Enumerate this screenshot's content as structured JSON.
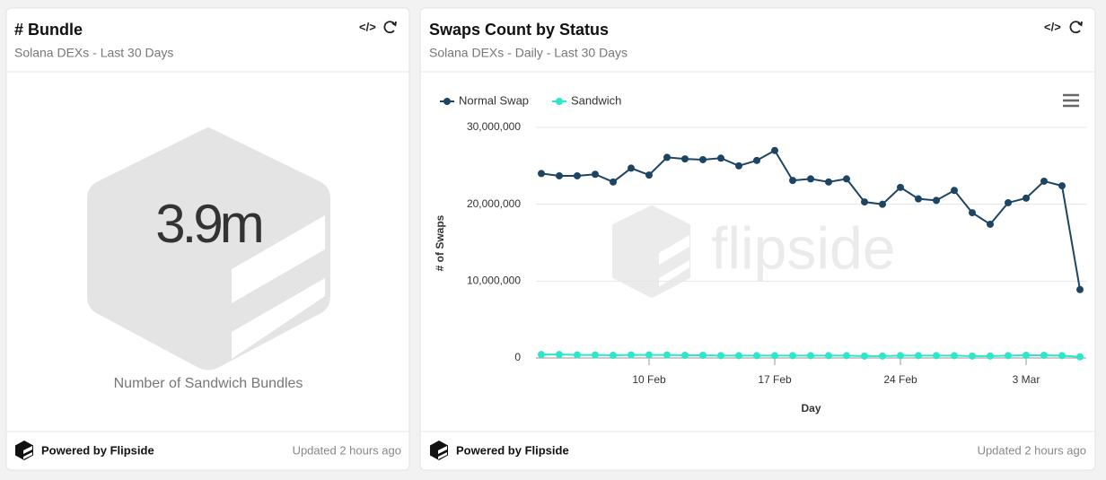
{
  "cards": [
    {
      "title": "# Bundle",
      "subtitle": "Solana DEXs - Last 30 Days",
      "value": "3.9m",
      "label": "Number of Sandwich Bundles",
      "footer": "Powered by Flipside",
      "updated": "Updated 2 hours ago"
    },
    {
      "title": "Swaps Count by Status",
      "subtitle": "Solana DEXs - Daily - Last 30 Days",
      "footer": "Powered by Flipside",
      "updated": "Updated 2 hours ago"
    }
  ],
  "chart_data": {
    "type": "line",
    "xlabel": "Day",
    "ylabel": "# of Swaps",
    "watermark": "flipside",
    "categories": [
      null,
      null,
      null,
      null,
      null,
      null,
      "10 Feb",
      null,
      null,
      null,
      null,
      null,
      null,
      "17 Feb",
      null,
      null,
      null,
      null,
      null,
      null,
      "24 Feb",
      null,
      null,
      null,
      null,
      null,
      null,
      "3 Mar",
      null,
      null,
      null
    ],
    "series": [
      {
        "name": "Normal Swap",
        "color": "#1d4563",
        "values": [
          24000000,
          23700000,
          23700000,
          23900000,
          22900000,
          24700000,
          23800000,
          26100000,
          25900000,
          25800000,
          26000000,
          25000000,
          25700000,
          27000000,
          23100000,
          23300000,
          22900000,
          23300000,
          20300000,
          20000000,
          22200000,
          20700000,
          20500000,
          21800000,
          18900000,
          17400000,
          20200000,
          20800000,
          23000000,
          22400000,
          8900000
        ]
      },
      {
        "name": "Sandwich",
        "color": "#2ee6c9",
        "values": [
          450000,
          450000,
          400000,
          400000,
          350000,
          400000,
          400000,
          400000,
          350000,
          350000,
          300000,
          300000,
          300000,
          300000,
          300000,
          300000,
          300000,
          300000,
          250000,
          250000,
          300000,
          300000,
          300000,
          300000,
          250000,
          250000,
          300000,
          350000,
          350000,
          300000,
          150000
        ]
      }
    ],
    "ylim": [
      0,
      30000000
    ],
    "yticks": [
      0,
      {
        "value": 10000000,
        "label": "10,000,000"
      },
      {
        "value": 20000000,
        "label": "20,000,000"
      },
      {
        "value": 30000000,
        "label": "30,000,000"
      }
    ],
    "grid": true,
    "legend": "top-left"
  }
}
